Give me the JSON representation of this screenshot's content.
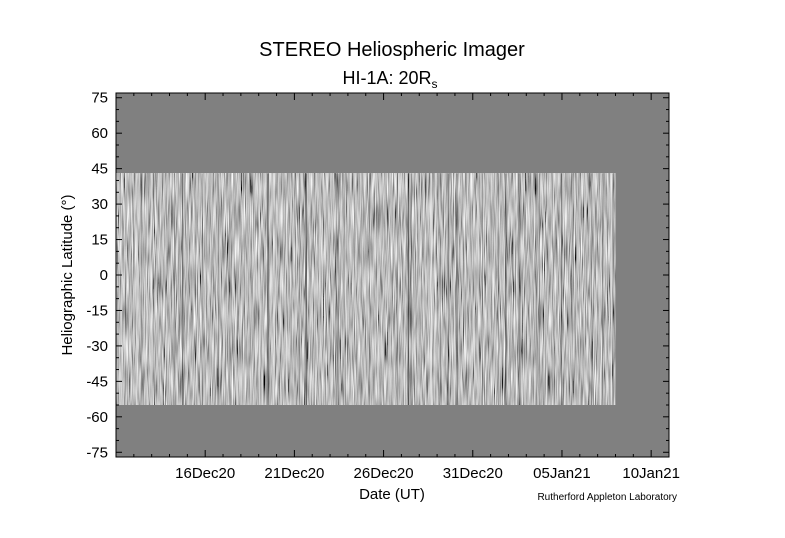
{
  "chart_data": {
    "type": "heatmap",
    "title": "STEREO Heliospheric Imager",
    "subtitle": "HI-1A: 20",
    "subtitle_sub": "s",
    "subtitle_symbol": "R",
    "xlabel": "Date (UT)",
    "ylabel": "Heliographic Latitude (°)",
    "credit": "Rutherford Appleton Laboratory",
    "ylim": [
      -77,
      77
    ],
    "yticks": [
      75,
      60,
      45,
      30,
      15,
      0,
      -15,
      -30,
      -45,
      -60,
      -75
    ],
    "ytick_labels": [
      "75",
      "60",
      "45",
      "30",
      "15",
      "0",
      "-15",
      "-30",
      "-45",
      "-60",
      "-75"
    ],
    "xlim": [
      "2020-12-11",
      "2021-01-11"
    ],
    "xticks": [
      "2020-12-16",
      "2020-12-21",
      "2020-12-26",
      "2020-12-31",
      "2021-01-05",
      "2021-01-10"
    ],
    "xtick_labels": [
      "16Dec20",
      "21Dec20",
      "26Dec20",
      "31Dec20",
      "05Jan21",
      "10Jan21"
    ],
    "data_extent": {
      "x_start": "2020-12-11",
      "x_end": "2021-01-08",
      "lat_top": 43,
      "lat_bottom": -55
    },
    "colormap": "grayscale",
    "background_color": "#808080",
    "grid": false
  }
}
